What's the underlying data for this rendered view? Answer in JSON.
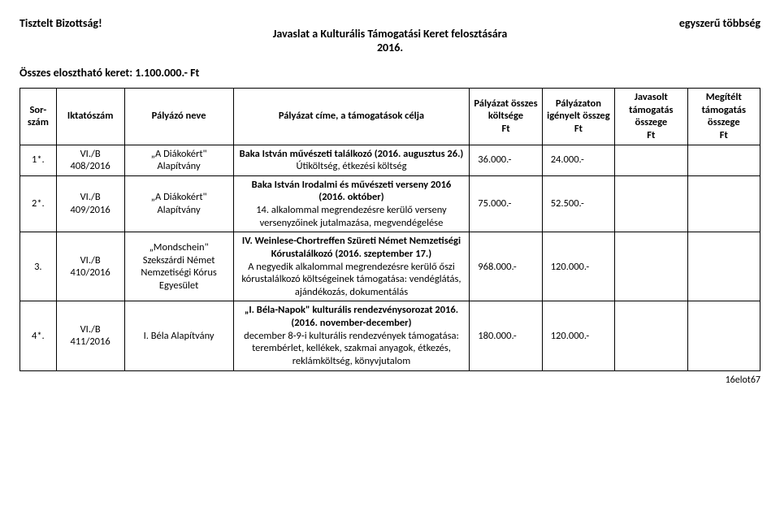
{
  "header": {
    "greeting": "Tisztelt Bizottság!",
    "majority": "egyszerű többség",
    "title_line1": "Javaslat a Kulturális Támogatási Keret felosztására",
    "title_line2": "2016.",
    "budget": "Összes elosztható keret: 1.100.000.- Ft"
  },
  "columns": {
    "sor": "Sor-\nszám",
    "iktato": "Iktatószám",
    "nev": "Pályázó neve",
    "cim": "Pályázat címe, a támogatások célja",
    "koltseg": "Pályázat összes költsége\nFt",
    "igenyelt": "Pályázaton igényelt összeg\nFt",
    "javasolt": "Javasolt támogatás összege\nFt",
    "megitelt": "Megítélt támogatás összege\nFt"
  },
  "rows": [
    {
      "sor": "1*.",
      "iktato": "VI./B\n408/2016",
      "nev": "„A Diákokért\" Alapítvány",
      "cim_bold": "Baka István művészeti találkozó (2016. augusztus 26.)",
      "cim_rest": "Útiköltség, étkezési költség",
      "koltseg": "36.000.-",
      "igenyelt": "24.000.-",
      "javasolt": "",
      "megitelt": ""
    },
    {
      "sor": "2*.",
      "iktato": "VI./B\n409/2016",
      "nev": "„A Diákokért\" Alapítvány",
      "cim_bold": "Baka István Irodalmi és művészeti verseny 2016 (2016. október)",
      "cim_rest": "14. alkalommal megrendezésre kerülő verseny versenyzőinek jutalmazása, megvendégelése",
      "koltseg": "75.000.-",
      "igenyelt": "52.500.-",
      "javasolt": "",
      "megitelt": ""
    },
    {
      "sor": "3.",
      "iktato": "VI./B\n410/2016",
      "nev": "„Mondschein\" Szekszárdi Német Nemzetiségi Kórus Egyesület",
      "cim_bold": "IV. Weinlese-Chortreffen Szüreti Német Nemzetiségi Kórustalálkozó (2016. szeptember 17.)",
      "cim_rest": "A negyedik alkalommal megrendezésre kerülő őszi kórustalálkozó költségeinek támogatása: vendéglátás, ajándékozás, dokumentálás",
      "koltseg": "968.000.-",
      "igenyelt": "120.000.-",
      "javasolt": "",
      "megitelt": ""
    },
    {
      "sor": "4*.",
      "iktato": "VI./B\n411/2016",
      "nev": "I.   Béla Alapítvány",
      "cim_bold": "„I. Béla-Napok\" kulturális rendezvénysorozat 2016. (2016. november-december)",
      "cim_rest": "december 8-9-i kulturális rendezvények támogatása: terembérlet, kellékek, szakmai anyagok, étkezés, reklámköltség, könyvjutalom",
      "koltseg": "180.000.-",
      "igenyelt": "120.000.-",
      "javasolt": "",
      "megitelt": ""
    }
  ],
  "footer": "16elot67",
  "style": {
    "background_color": "#ffffff",
    "text_color": "#000000",
    "border_color": "#000000",
    "font_family": "Calibri",
    "base_font_size": 13,
    "bold_header_font_size": 14
  }
}
